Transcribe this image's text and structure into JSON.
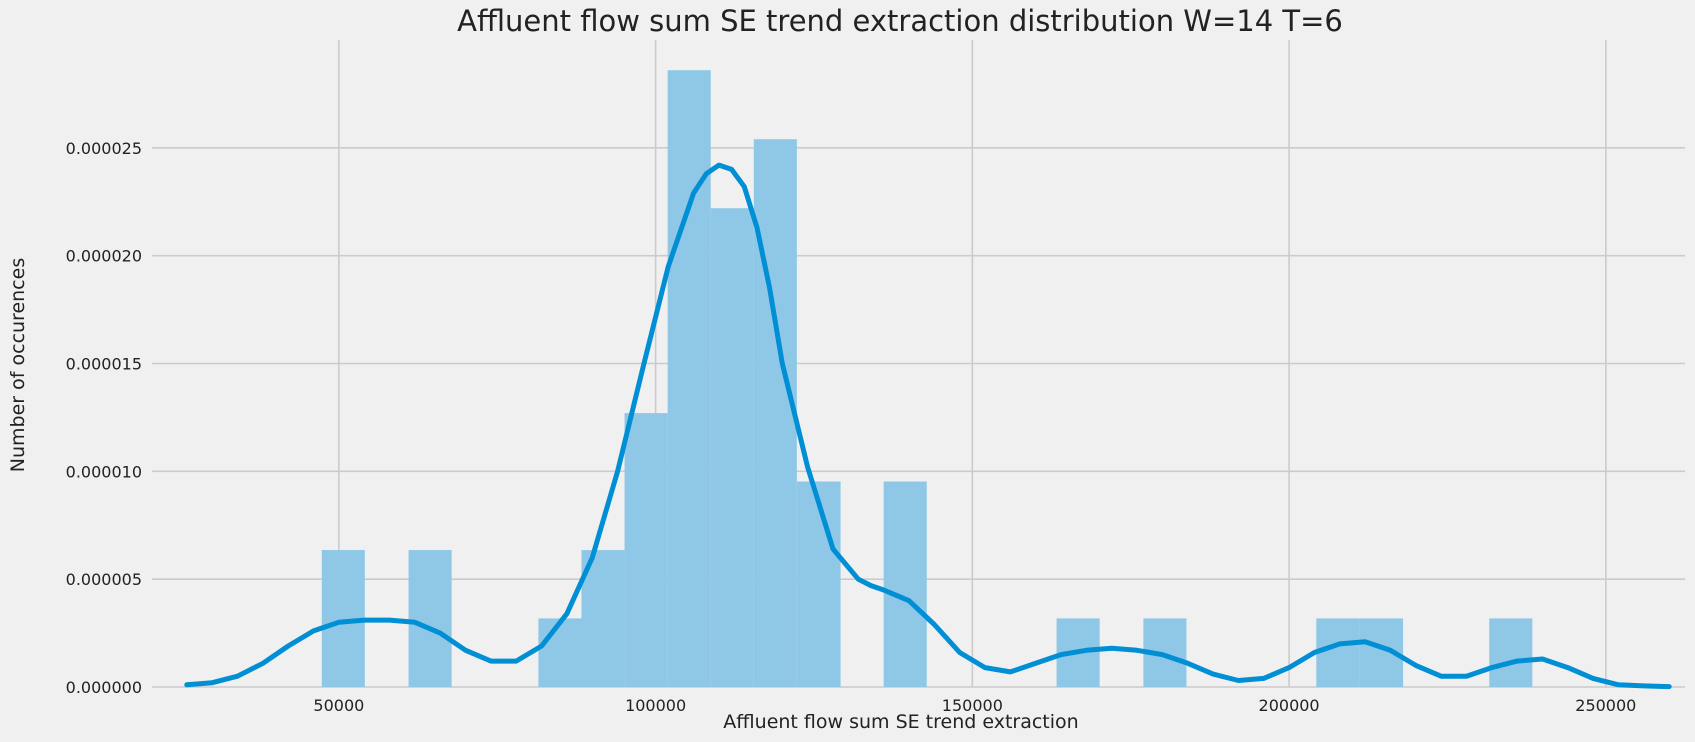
{
  "chart_data": {
    "type": "bar",
    "title": "Affluent flow sum SE trend extraction distribution W=14 T=6",
    "xlabel": "Affluent flow sum SE trend extraction",
    "ylabel": "Number of occurences",
    "xlim": [
      20500,
      262500
    ],
    "ylim": [
      0,
      3e-05
    ],
    "x_ticks": [
      50000,
      100000,
      150000,
      200000,
      250000
    ],
    "x_tick_labels": [
      "50000",
      "100000",
      "150000",
      "200000",
      "250000"
    ],
    "y_ticks": [
      0,
      5e-06,
      1e-05,
      1.5e-05,
      2e-05,
      2.5e-05
    ],
    "y_tick_labels": [
      "0.000000",
      "0.000005",
      "0.000010",
      "0.000015",
      "0.000020",
      "0.000025"
    ],
    "grid": true,
    "bins": [
      {
        "x0": 47300,
        "x1": 54100,
        "value": 6.35e-06
      },
      {
        "x0": 61000,
        "x1": 67800,
        "value": 6.35e-06
      },
      {
        "x0": 81500,
        "x1": 88300,
        "value": 3.18e-06
      },
      {
        "x0": 88300,
        "x1": 95100,
        "value": 6.35e-06
      },
      {
        "x0": 95100,
        "x1": 101900,
        "value": 1.27e-05
      },
      {
        "x0": 101900,
        "x1": 108700,
        "value": 2.86e-05
      },
      {
        "x0": 108700,
        "x1": 115500,
        "value": 2.22e-05
      },
      {
        "x0": 115500,
        "x1": 122300,
        "value": 2.54e-05
      },
      {
        "x0": 122300,
        "x1": 129200,
        "value": 9.53e-06
      },
      {
        "x0": 136000,
        "x1": 142800,
        "value": 9.53e-06
      },
      {
        "x0": 163300,
        "x1": 170100,
        "value": 3.18e-06
      },
      {
        "x0": 177000,
        "x1": 183800,
        "value": 3.18e-06
      },
      {
        "x0": 204300,
        "x1": 211100,
        "value": 3.18e-06
      },
      {
        "x0": 211100,
        "x1": 218000,
        "value": 3.18e-06
      },
      {
        "x0": 231600,
        "x1": 238400,
        "value": 3.18e-06
      }
    ],
    "kde": {
      "x": [
        26000,
        30000,
        34000,
        38000,
        42000,
        46000,
        50000,
        54000,
        58000,
        62000,
        66000,
        70000,
        74000,
        78000,
        82000,
        86000,
        90000,
        94000,
        98000,
        102000,
        106000,
        108000,
        110000,
        112000,
        114000,
        116000,
        118000,
        120000,
        124000,
        128000,
        132000,
        134000,
        136000,
        140000,
        144000,
        148000,
        152000,
        156000,
        160000,
        164000,
        168000,
        172000,
        176000,
        180000,
        184000,
        188000,
        192000,
        196000,
        200000,
        204000,
        208000,
        212000,
        216000,
        220000,
        224000,
        228000,
        232000,
        236000,
        240000,
        244000,
        248000,
        252000,
        256000,
        260000
      ],
      "y": [
        1e-07,
        2e-07,
        5e-07,
        1.1e-06,
        1.9e-06,
        2.6e-06,
        3e-06,
        3.1e-06,
        3.1e-06,
        3e-06,
        2.5e-06,
        1.7e-06,
        1.2e-06,
        1.2e-06,
        1.9e-06,
        3.4e-06,
        6e-06,
        1e-05,
        1.48e-05,
        1.95e-05,
        2.29e-05,
        2.38e-05,
        2.42e-05,
        2.4e-05,
        2.32e-05,
        2.13e-05,
        1.85e-05,
        1.5e-05,
        1.02e-05,
        6.4e-06,
        5e-06,
        4.7e-06,
        4.5e-06,
        4e-06,
        2.9e-06,
        1.6e-06,
        9e-07,
        7e-07,
        1.1e-06,
        1.5e-06,
        1.7e-06,
        1.8e-06,
        1.7e-06,
        1.5e-06,
        1.1e-06,
        6e-07,
        3e-07,
        4e-07,
        9e-07,
        1.6e-06,
        2e-06,
        2.1e-06,
        1.7e-06,
        1e-06,
        5e-07,
        5e-07,
        9e-07,
        1.2e-06,
        1.3e-06,
        9e-07,
        4e-07,
        1e-07,
        5e-08,
        2e-08
      ]
    },
    "colors": {
      "bars": "#8fc8e6",
      "kde": "#008fd5",
      "background": "#f0f0f0",
      "grid": "#cbcbcb"
    }
  }
}
